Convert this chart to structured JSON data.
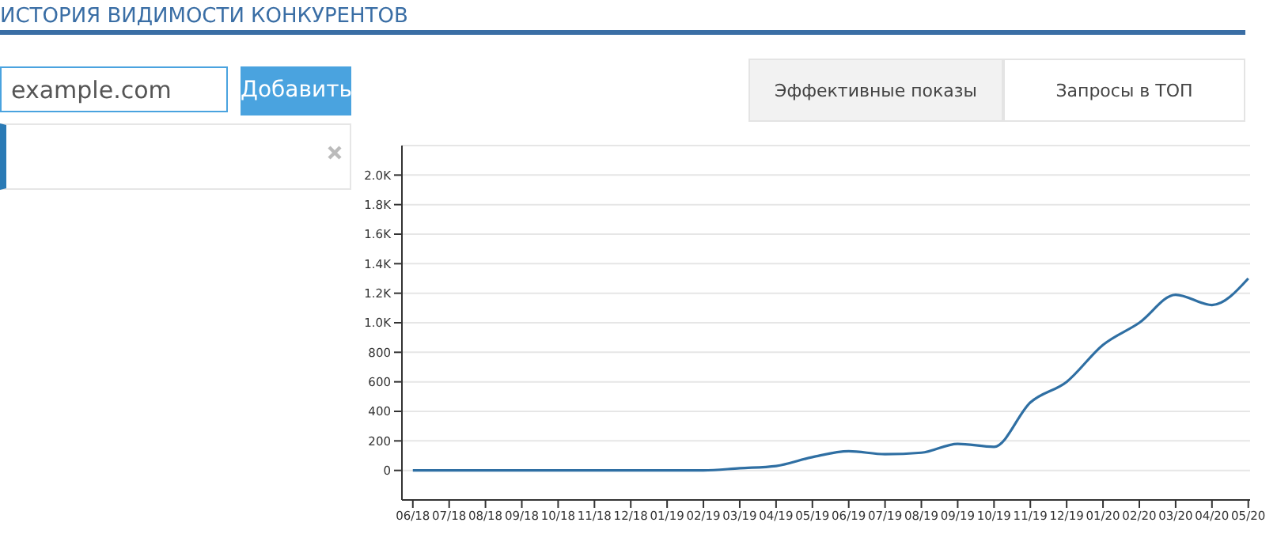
{
  "chart_data": {
    "type": "line",
    "title": "ИСТОРИЯ ВИДИМОСТИ КОНКУРЕНТОВ",
    "annotations": [
      "example.com",
      "Добавить",
      "Эффективные показы",
      "Запросы в ТОП"
    ],
    "categories": [
      "06/18",
      "07/18",
      "08/18",
      "09/18",
      "10/18",
      "11/18",
      "12/18",
      "01/19",
      "02/19",
      "03/19",
      "04/19",
      "05/19",
      "06/19",
      "07/19",
      "08/19",
      "09/19",
      "10/19",
      "11/19",
      "12/19",
      "01/20",
      "02/20",
      "03/20",
      "04/20",
      "05/20"
    ],
    "series": [
      {
        "color": "#2f6fa3",
        "values": [
          0,
          0,
          0,
          0,
          0,
          0,
          0,
          0,
          0,
          15,
          30,
          90,
          130,
          110,
          120,
          180,
          160,
          460,
          600,
          850,
          1000,
          1190,
          1120,
          1300
        ]
      }
    ],
    "ylim": [
      -200,
      2200
    ],
    "yticks": [
      0,
      200,
      400,
      600,
      800,
      {
        "value": 1000,
        "label": "1.0K"
      },
      {
        "value": 1200,
        "label": "1.2K"
      },
      {
        "value": 1400,
        "label": "1.4K"
      },
      {
        "value": 1600,
        "label": "1.6K"
      },
      {
        "value": 1800,
        "label": "1.8K"
      },
      {
        "value": 2000,
        "label": "2.0K"
      }
    ],
    "grid": "y",
    "marker": "none",
    "line_style": "solid",
    "legend": false
  }
}
